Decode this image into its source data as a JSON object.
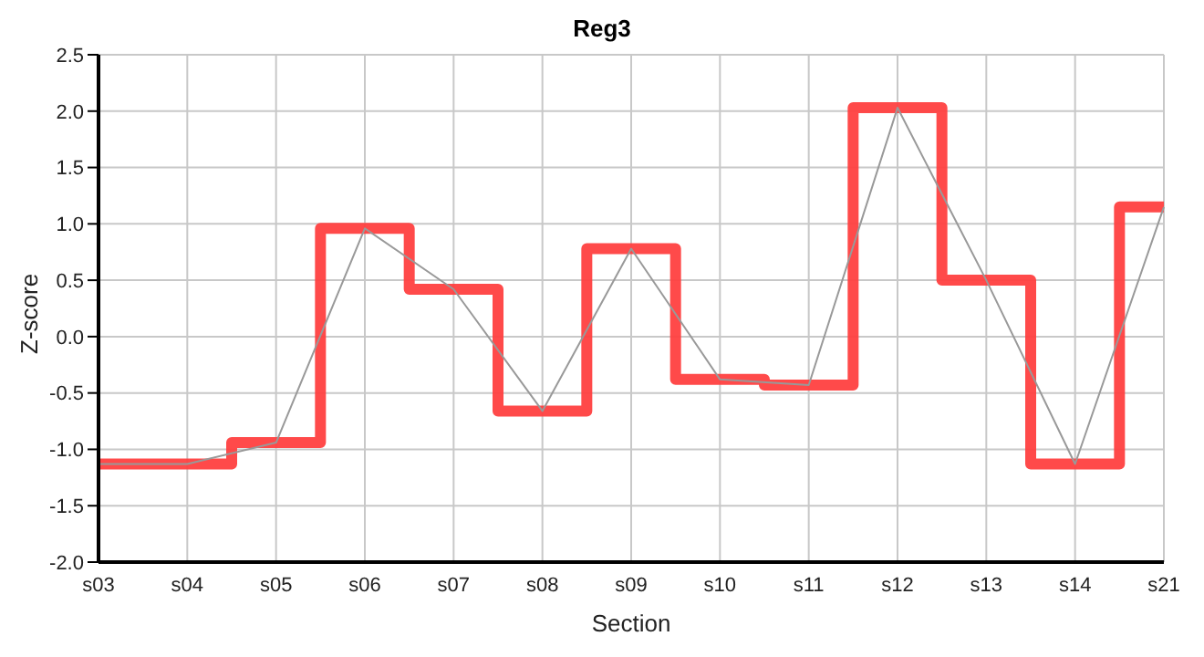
{
  "chart_data": {
    "type": "step",
    "title": "Reg3",
    "xlabel": "Section",
    "ylabel": "Z-score",
    "categories": [
      "s03",
      "s04",
      "s05",
      "s06",
      "s07",
      "s08",
      "s09",
      "s10",
      "s11",
      "s12",
      "s13",
      "s14",
      "s21"
    ],
    "series": [
      {
        "type": "step",
        "color": "#ff4040",
        "values": [
          -1.13,
          -1.13,
          -0.94,
          0.96,
          0.42,
          -0.66,
          0.78,
          -0.38,
          -0.43,
          2.03,
          0.5,
          -1.13,
          1.15
        ]
      },
      {
        "type": "line",
        "color": "#999999",
        "values": [
          -1.13,
          -1.13,
          -0.94,
          0.96,
          0.42,
          -0.66,
          0.78,
          -0.38,
          -0.43,
          2.03,
          0.5,
          -1.13,
          1.15
        ]
      }
    ],
    "ylim": [
      -2,
      2.5
    ],
    "yticks": [
      {
        "value": -2,
        "label": "-2.0"
      },
      {
        "value": -1.5,
        "label": "-1.5"
      },
      {
        "value": -1,
        "label": "-1.0"
      },
      {
        "value": -0.5,
        "label": "-0.5"
      },
      {
        "value": 0,
        "label": "0.0"
      },
      {
        "value": 0.5,
        "label": "0.5"
      },
      {
        "value": 1,
        "label": "1.0"
      },
      {
        "value": 1.5,
        "label": "1.5"
      },
      {
        "value": 2,
        "label": "2.0"
      },
      {
        "value": 2.5,
        "label": "2.5"
      }
    ],
    "grid": true,
    "legend": false,
    "marker": "none"
  }
}
